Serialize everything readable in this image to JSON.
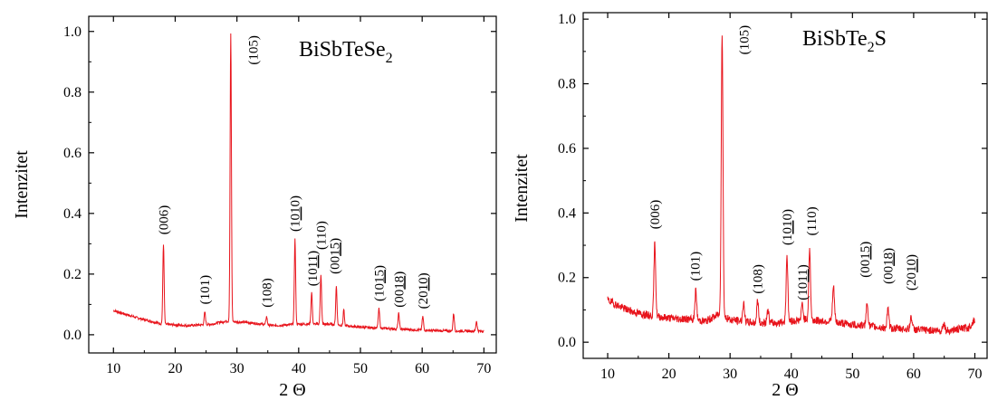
{
  "chart_data": [
    {
      "type": "line",
      "title_main": "BiSbTeSe",
      "title_sub": "2",
      "title_tail": "",
      "xlabel": "2 Θ",
      "ylabel": "Intenzitet",
      "xlim": [
        6,
        72
      ],
      "ylim": [
        -0.06,
        1.05
      ],
      "xticks": [
        "10",
        "20",
        "30",
        "40",
        "50",
        "60",
        "70"
      ],
      "yticks": [
        "0.0",
        "0.2",
        "0.4",
        "0.6",
        "0.8",
        "1.0"
      ],
      "line_color": "#e8141c",
      "baseline": [
        [
          10,
          0.08
        ],
        [
          14,
          0.055
        ],
        [
          18,
          0.035
        ],
        [
          22,
          0.03
        ],
        [
          26,
          0.035
        ],
        [
          28,
          0.045
        ],
        [
          32,
          0.04
        ],
        [
          36,
          0.03
        ],
        [
          40,
          0.035
        ],
        [
          45,
          0.035
        ],
        [
          50,
          0.025
        ],
        [
          55,
          0.02
        ],
        [
          60,
          0.015
        ],
        [
          65,
          0.012
        ],
        [
          70,
          0.012
        ]
      ],
      "peaks": [
        {
          "x": 18.1,
          "y": 0.3,
          "w": 0.15
        },
        {
          "x": 24.8,
          "y": 0.075,
          "w": 0.15
        },
        {
          "x": 27.7,
          "y": 0.04,
          "w": 0.12
        },
        {
          "x": 29.0,
          "y": 0.99,
          "w": 0.15
        },
        {
          "x": 34.8,
          "y": 0.06,
          "w": 0.15
        },
        {
          "x": 39.4,
          "y": 0.315,
          "w": 0.15
        },
        {
          "x": 42.1,
          "y": 0.14,
          "w": 0.15
        },
        {
          "x": 43.6,
          "y": 0.2,
          "w": 0.15
        },
        {
          "x": 46.1,
          "y": 0.16,
          "w": 0.15
        },
        {
          "x": 47.3,
          "y": 0.085,
          "w": 0.13
        },
        {
          "x": 53.0,
          "y": 0.085,
          "w": 0.16
        },
        {
          "x": 56.2,
          "y": 0.07,
          "w": 0.16
        },
        {
          "x": 60.1,
          "y": 0.06,
          "w": 0.16
        },
        {
          "x": 65.1,
          "y": 0.07,
          "w": 0.16
        },
        {
          "x": 68.8,
          "y": 0.045,
          "w": 0.15
        }
      ],
      "annotations": [
        {
          "parts": [
            "(006)"
          ],
          "x": 18.1,
          "y": 0.33
        },
        {
          "parts": [
            "(101)"
          ],
          "x": 24.8,
          "y": 0.1
        },
        {
          "parts": [
            "(105)"
          ],
          "x": 32.6,
          "y": 0.89
        },
        {
          "parts": [
            "(108)"
          ],
          "x": 34.8,
          "y": 0.09
        },
        {
          "parts": [
            "(1",
            "01",
            "0)"
          ],
          "x": 39.4,
          "y": 0.34
        },
        {
          "parts": [
            "(10",
            "11",
            ")"
          ],
          "x": 42.2,
          "y": 0.16
        },
        {
          "parts": [
            "(110)"
          ],
          "x": 43.6,
          "y": 0.28
        },
        {
          "parts": [
            "(00",
            "15",
            ")"
          ],
          "x": 45.8,
          "y": 0.2
        },
        {
          "parts": [
            "(10",
            "15",
            ")"
          ],
          "x": 53.0,
          "y": 0.11
        },
        {
          "parts": [
            "(00",
            "18",
            ")"
          ],
          "x": 56.2,
          "y": 0.09
        },
        {
          "parts": [
            "(20",
            "10",
            ")"
          ],
          "x": 60.1,
          "y": 0.085
        }
      ]
    },
    {
      "type": "line",
      "title_main": "BiSbTe",
      "title_sub": "2",
      "title_tail": "S",
      "xlabel": "2 Θ",
      "ylabel": "Intenzitet",
      "xlim": [
        6,
        72
      ],
      "ylim": [
        -0.05,
        1.02
      ],
      "xticks": [
        "10",
        "20",
        "30",
        "40",
        "50",
        "60",
        "70"
      ],
      "yticks": [
        "0.0",
        "0.2",
        "0.4",
        "0.6",
        "0.8",
        "1.0"
      ],
      "line_color": "#e8141c",
      "baseline": [
        [
          10,
          0.13
        ],
        [
          12,
          0.11
        ],
        [
          14,
          0.095
        ],
        [
          16,
          0.085
        ],
        [
          18,
          0.08
        ],
        [
          20,
          0.075
        ],
        [
          24,
          0.07
        ],
        [
          26,
          0.065
        ],
        [
          28,
          0.085
        ],
        [
          30,
          0.07
        ],
        [
          34,
          0.06
        ],
        [
          38,
          0.06
        ],
        [
          42,
          0.07
        ],
        [
          46,
          0.065
        ],
        [
          50,
          0.055
        ],
        [
          55,
          0.045
        ],
        [
          60,
          0.04
        ],
        [
          65,
          0.035
        ],
        [
          69,
          0.045
        ],
        [
          70,
          0.07
        ]
      ],
      "peaks": [
        {
          "x": 17.7,
          "y": 0.31,
          "w": 0.2
        },
        {
          "x": 24.4,
          "y": 0.16,
          "w": 0.2
        },
        {
          "x": 28.7,
          "y": 0.96,
          "w": 0.2
        },
        {
          "x": 32.2,
          "y": 0.12,
          "w": 0.2
        },
        {
          "x": 34.5,
          "y": 0.13,
          "w": 0.2
        },
        {
          "x": 36.2,
          "y": 0.1,
          "w": 0.2
        },
        {
          "x": 39.3,
          "y": 0.27,
          "w": 0.2
        },
        {
          "x": 41.8,
          "y": 0.12,
          "w": 0.2
        },
        {
          "x": 43.0,
          "y": 0.29,
          "w": 0.2
        },
        {
          "x": 46.9,
          "y": 0.17,
          "w": 0.22
        },
        {
          "x": 52.4,
          "y": 0.12,
          "w": 0.22
        },
        {
          "x": 55.8,
          "y": 0.1,
          "w": 0.22
        },
        {
          "x": 59.6,
          "y": 0.08,
          "w": 0.22
        },
        {
          "x": 64.9,
          "y": 0.06,
          "w": 0.22
        }
      ],
      "annotations": [
        {
          "parts": [
            "(006)"
          ],
          "x": 17.7,
          "y": 0.35
        },
        {
          "parts": [
            "(101)"
          ],
          "x": 24.3,
          "y": 0.19
        },
        {
          "parts": [
            "(105)"
          ],
          "x": 32.3,
          "y": 0.89
        },
        {
          "parts": [
            "(108)"
          ],
          "x": 34.5,
          "y": 0.15
        },
        {
          "parts": [
            "(1",
            "01",
            "0)"
          ],
          "x": 39.3,
          "y": 0.3
        },
        {
          "parts": [
            "(10",
            "11",
            ")"
          ],
          "x": 41.8,
          "y": 0.13
        },
        {
          "parts": [
            "(110)"
          ],
          "x": 43.3,
          "y": 0.33
        },
        {
          "parts": [
            "(00",
            "15",
            ")"
          ],
          "x": 52.0,
          "y": 0.2
        },
        {
          "parts": [
            "(00",
            "18",
            ")"
          ],
          "x": 55.8,
          "y": 0.18
        },
        {
          "parts": [
            "(20",
            "10",
            ")"
          ],
          "x": 59.6,
          "y": 0.16
        }
      ]
    }
  ]
}
